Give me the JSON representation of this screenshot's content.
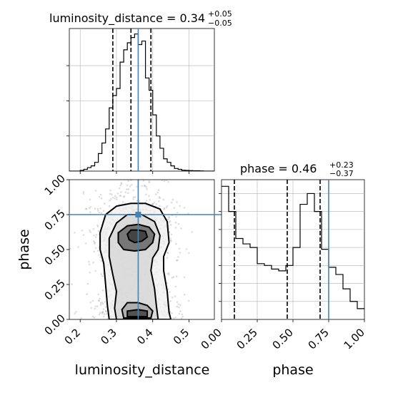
{
  "chart_data": [
    {
      "type": "histogram",
      "panel": "1d-marginal",
      "parameter": "luminosity_distance",
      "title": {
        "name": "luminosity_distance",
        "median": "0.34",
        "upper": "+0.05",
        "lower": "−0.05"
      },
      "xlim": [
        0.17,
        0.57
      ],
      "bins": [
        0.17,
        0.18,
        0.19,
        0.2,
        0.21,
        0.22,
        0.23,
        0.24,
        0.25,
        0.26,
        0.27,
        0.28,
        0.29,
        0.3,
        0.31,
        0.32,
        0.33,
        0.34,
        0.35,
        0.36,
        0.37,
        0.38,
        0.39,
        0.4,
        0.41,
        0.42,
        0.43,
        0.44,
        0.45,
        0.46,
        0.47,
        0.48,
        0.49,
        0.5,
        0.51,
        0.52,
        0.53,
        0.54,
        0.55,
        0.56,
        0.57
      ],
      "counts": [
        0,
        0,
        0,
        0.4,
        1,
        2,
        3,
        5,
        10,
        16,
        24,
        36,
        43,
        47,
        62,
        69,
        73,
        76,
        78,
        72,
        74,
        53,
        46,
        32,
        20,
        13,
        7,
        5,
        3,
        1.5,
        1,
        0.5,
        0.4,
        0.3,
        0.2,
        0.2,
        0.1,
        0,
        0,
        0
      ],
      "quantile_lines": [
        0.29,
        0.34,
        0.395
      ],
      "truth": 0.36
    },
    {
      "type": "histogram",
      "panel": "1d-marginal",
      "parameter": "phase",
      "title": {
        "name": "phase",
        "median": "0.46",
        "upper": "+0.23",
        "lower": "−0.37"
      },
      "xlabel": "phase",
      "xlim": [
        0.0,
        1.0
      ],
      "xticks": [
        "0.00",
        "0.25",
        "0.50",
        "0.75",
        "1.00"
      ],
      "bins": [
        0.0,
        0.05,
        0.1,
        0.15,
        0.2,
        0.25,
        0.3,
        0.35,
        0.4,
        0.45,
        0.5,
        0.55,
        0.6,
        0.65,
        0.7,
        0.75,
        0.8,
        0.85,
        0.9,
        0.95,
        1.0
      ],
      "counts": [
        74,
        60,
        45,
        42,
        40,
        31,
        30,
        28,
        27,
        30,
        40,
        64,
        70,
        60,
        39,
        29,
        25,
        17,
        10,
        6
      ],
      "quantile_lines": [
        0.09,
        0.46,
        0.69
      ],
      "truth": 0.75
    },
    {
      "type": "contour",
      "panel": "2d-joint",
      "x_parameter": "luminosity_distance",
      "y_parameter": "phase",
      "xlabel": "luminosity_distance",
      "ylabel": "phase",
      "xlim": [
        0.17,
        0.57
      ],
      "ylim": [
        0.0,
        1.0
      ],
      "xticks": [
        "0.2",
        "0.3",
        "0.4",
        "0.5"
      ],
      "yticks": [
        "0.00",
        "0.25",
        "0.50",
        "0.75",
        "1.00"
      ],
      "truth": {
        "x": 0.36,
        "y": 0.75
      },
      "levels": [
        [
          [
            0.28,
            0.0
          ],
          [
            0.275,
            0.1
          ],
          [
            0.27,
            0.25
          ],
          [
            0.265,
            0.4
          ],
          [
            0.255,
            0.5
          ],
          [
            0.255,
            0.62
          ],
          [
            0.27,
            0.75
          ],
          [
            0.3,
            0.81
          ],
          [
            0.34,
            0.83
          ],
          [
            0.38,
            0.83
          ],
          [
            0.42,
            0.79
          ],
          [
            0.44,
            0.7
          ],
          [
            0.445,
            0.55
          ],
          [
            0.43,
            0.45
          ],
          [
            0.43,
            0.35
          ],
          [
            0.44,
            0.2
          ],
          [
            0.445,
            0.05
          ],
          [
            0.45,
            0.0
          ]
        ],
        [
          [
            0.3,
            0.0
          ],
          [
            0.295,
            0.08
          ],
          [
            0.3,
            0.2
          ],
          [
            0.29,
            0.32
          ],
          [
            0.28,
            0.45
          ],
          [
            0.28,
            0.58
          ],
          [
            0.3,
            0.69
          ],
          [
            0.33,
            0.75
          ],
          [
            0.37,
            0.75
          ],
          [
            0.405,
            0.7
          ],
          [
            0.42,
            0.6
          ],
          [
            0.415,
            0.5
          ],
          [
            0.4,
            0.44
          ],
          [
            0.395,
            0.35
          ],
          [
            0.405,
            0.22
          ],
          [
            0.41,
            0.1
          ],
          [
            0.415,
            0.0
          ]
        ],
        [
          [
            0.32,
            0.01
          ],
          [
            0.315,
            0.07
          ],
          [
            0.33,
            0.12
          ],
          [
            0.36,
            0.12
          ],
          [
            0.385,
            0.1
          ],
          [
            0.4,
            0.06
          ],
          [
            0.395,
            0.01
          ]
        ],
        [
          [
            0.305,
            0.62
          ],
          [
            0.305,
            0.55
          ],
          [
            0.32,
            0.5
          ],
          [
            0.35,
            0.49
          ],
          [
            0.38,
            0.5
          ],
          [
            0.4,
            0.55
          ],
          [
            0.405,
            0.61
          ],
          [
            0.39,
            0.66
          ],
          [
            0.36,
            0.68
          ],
          [
            0.33,
            0.67
          ]
        ],
        [
          [
            0.33,
            0.02
          ],
          [
            0.33,
            0.06
          ],
          [
            0.36,
            0.07
          ],
          [
            0.385,
            0.06
          ],
          [
            0.385,
            0.02
          ]
        ],
        [
          [
            0.33,
            0.61
          ],
          [
            0.335,
            0.57
          ],
          [
            0.35,
            0.55
          ],
          [
            0.37,
            0.56
          ],
          [
            0.385,
            0.59
          ],
          [
            0.38,
            0.63
          ],
          [
            0.36,
            0.64
          ],
          [
            0.34,
            0.64
          ]
        ]
      ]
    }
  ]
}
